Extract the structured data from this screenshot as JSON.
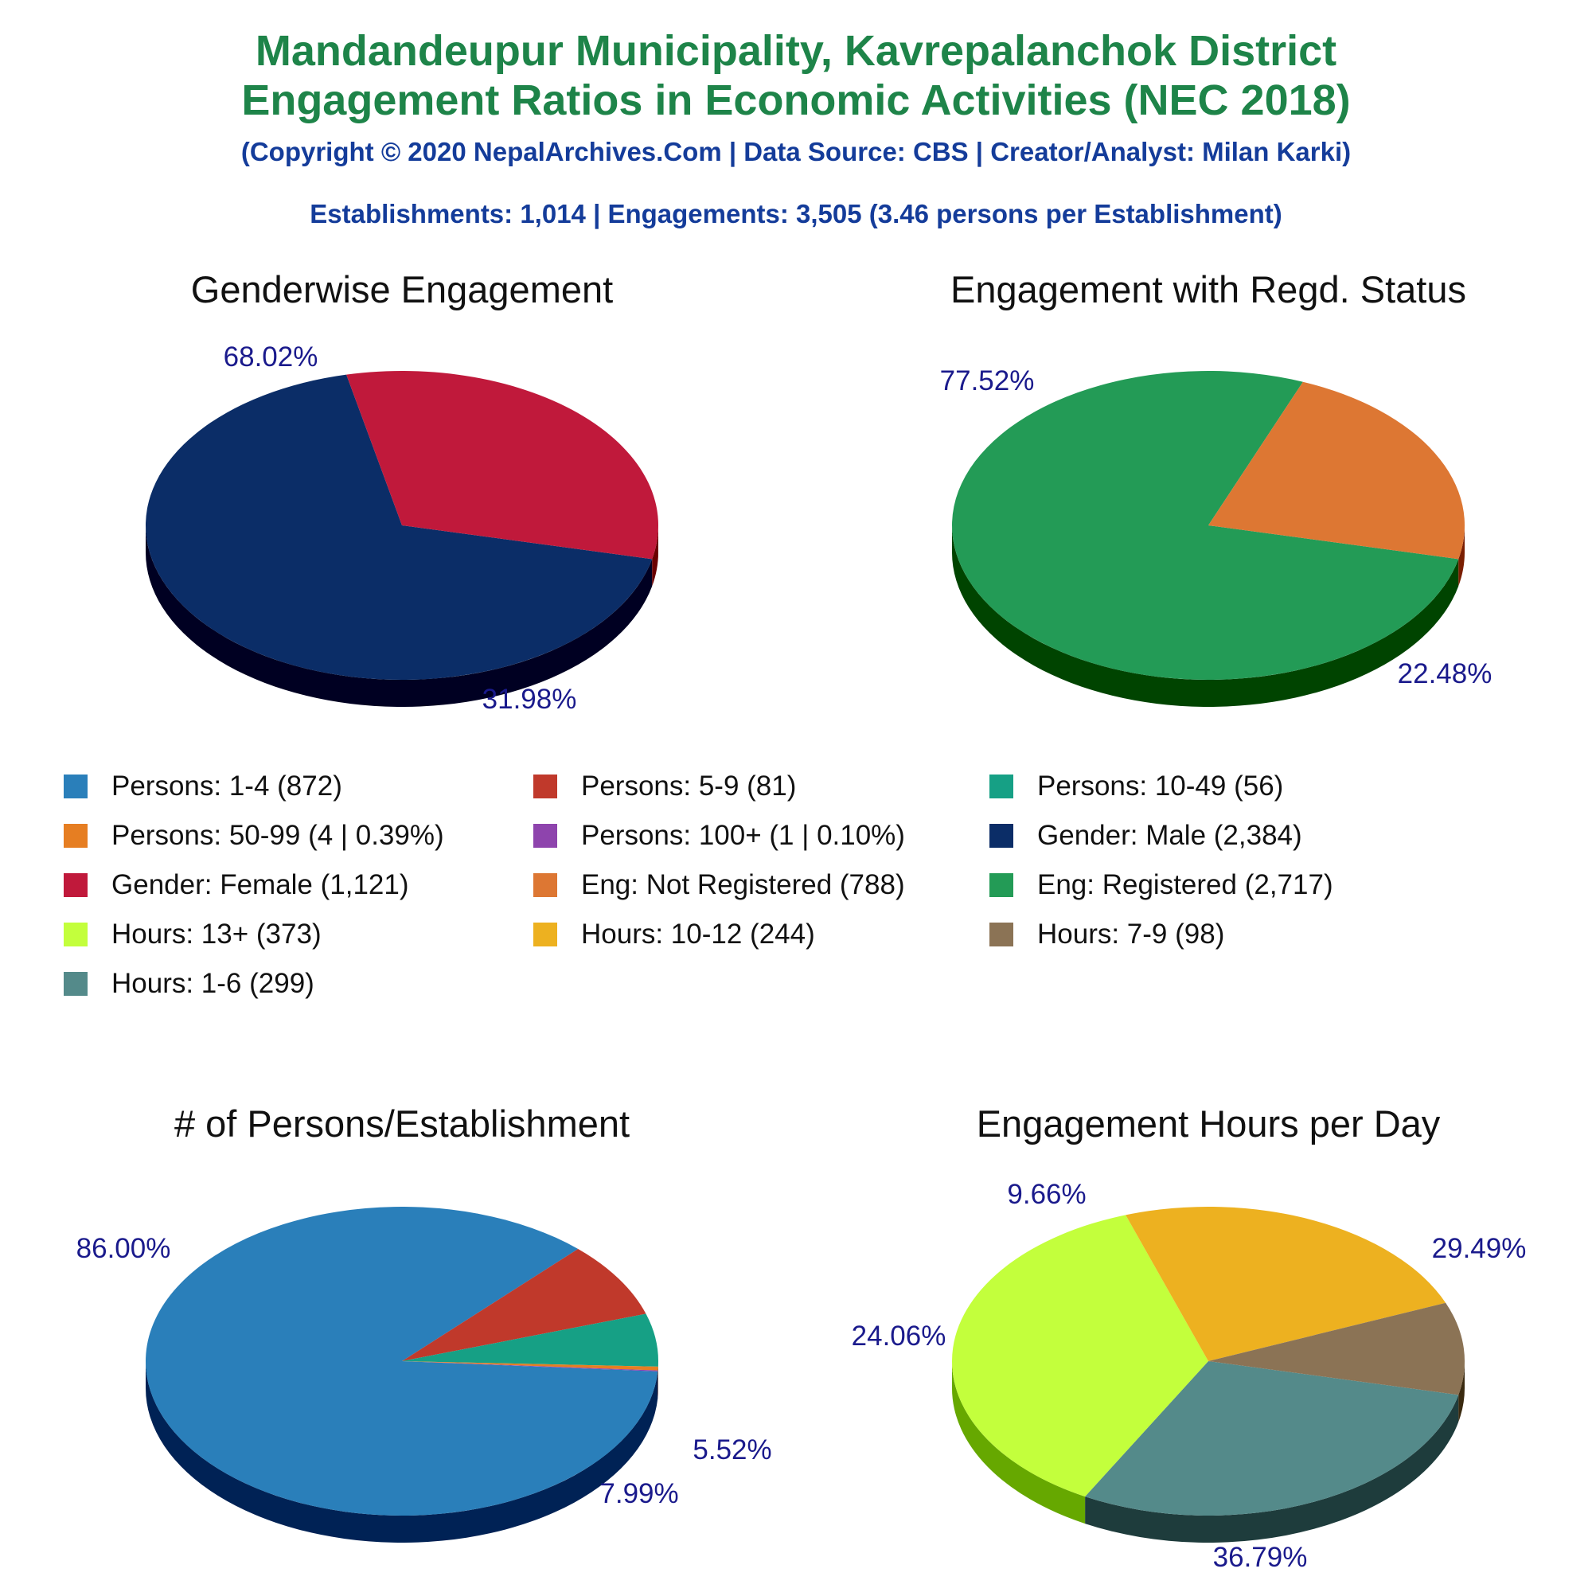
{
  "title_line1": "Mandandeupur Municipality, Kavrepalanchok District",
  "title_line2": "Engagement Ratios in Economic Activities (NEC 2018)",
  "subtitle": "(Copyright © 2020 NepalArchives.Com | Data Source: CBS | Creator/Analyst: Milan Karki)",
  "summary": "Establishments: 1,014 | Engagements: 3,505 (3.46 persons per Establishment)",
  "legend": [
    {
      "label": "Persons: 1-4 (872)",
      "color": "#2a7fba"
    },
    {
      "label": "Persons: 5-9 (81)",
      "color": "#c0392b"
    },
    {
      "label": "Persons: 10-49 (56)",
      "color": "#16a085"
    },
    {
      "label": "Persons: 50-99 (4 | 0.39%)",
      "color": "#e67e22"
    },
    {
      "label": "Persons: 100+ (1 | 0.10%)",
      "color": "#8e44ad"
    },
    {
      "label": "Gender: Male (2,384)",
      "color": "#0b2d67"
    },
    {
      "label": "Gender: Female (1,121)",
      "color": "#c0193b"
    },
    {
      "label": "Eng: Not Registered (788)",
      "color": "#dd7733"
    },
    {
      "label": "Eng: Registered (2,717)",
      "color": "#239b56"
    },
    {
      "label": "Hours: 13+ (373)",
      "color": "#c3ff3c"
    },
    {
      "label": "Hours: 10-12 (244)",
      "color": "#edb120"
    },
    {
      "label": "Hours: 7-9 (98)",
      "color": "#8b7355"
    },
    {
      "label": "Hours: 1-6 (299)",
      "color": "#548a8a"
    }
  ],
  "chart_data": [
    {
      "type": "pie",
      "title": "Genderwise Engagement",
      "slices": [
        {
          "name": "Gender: Male",
          "value": 2384,
          "percent_label": "68.02%",
          "color": "#0b2d67",
          "side_color": "#000022"
        },
        {
          "name": "Gender: Female",
          "value": 1121,
          "percent_label": "31.98%",
          "color": "#c0193b",
          "side_color": "#6a0000"
        }
      ]
    },
    {
      "type": "pie",
      "title": "Engagement with Regd. Status",
      "slices": [
        {
          "name": "Eng: Registered",
          "value": 2717,
          "percent_label": "77.52%",
          "color": "#239b56",
          "side_color": "#004400"
        },
        {
          "name": "Eng: Not Registered",
          "value": 788,
          "percent_label": "22.48%",
          "color": "#dd7733",
          "side_color": "#7a1e00"
        }
      ]
    },
    {
      "type": "pie",
      "title": "# of Persons/Establishment",
      "slices": [
        {
          "name": "Persons: 1-4",
          "value": 872,
          "percent_label": "86.00%",
          "color": "#2a7fba",
          "side_color": "#002255"
        },
        {
          "name": "Persons: 5-9",
          "value": 81,
          "percent_label": "7.99%",
          "color": "#c0392b",
          "side_color": "#6a0000"
        },
        {
          "name": "Persons: 10-49",
          "value": 56,
          "percent_label": "5.52%",
          "color": "#16a085",
          "side_color": "#004433"
        },
        {
          "name": "Persons: 50-99",
          "value": 4,
          "percent_label": "",
          "color": "#e67e22",
          "side_color": "#7a3300"
        },
        {
          "name": "Persons: 100+",
          "value": 1,
          "percent_label": "",
          "color": "#8e44ad",
          "side_color": "#3a0055"
        }
      ]
    },
    {
      "type": "pie",
      "title": "Engagement Hours per Day",
      "slices": [
        {
          "name": "Hours: 1-6",
          "value": 299,
          "percent_label": "29.49%",
          "color": "#548a8a",
          "side_color": "#1e3c3c"
        },
        {
          "name": "Hours: 13+",
          "value": 373,
          "percent_label": "36.79%",
          "color": "#c3ff3c",
          "side_color": "#66a800"
        },
        {
          "name": "Hours: 10-12",
          "value": 244,
          "percent_label": "24.06%",
          "color": "#edb120",
          "side_color": "#8a5000"
        },
        {
          "name": "Hours: 7-9",
          "value": 98,
          "percent_label": "9.66%",
          "color": "#8b7355",
          "side_color": "#3a2a10"
        }
      ]
    }
  ]
}
